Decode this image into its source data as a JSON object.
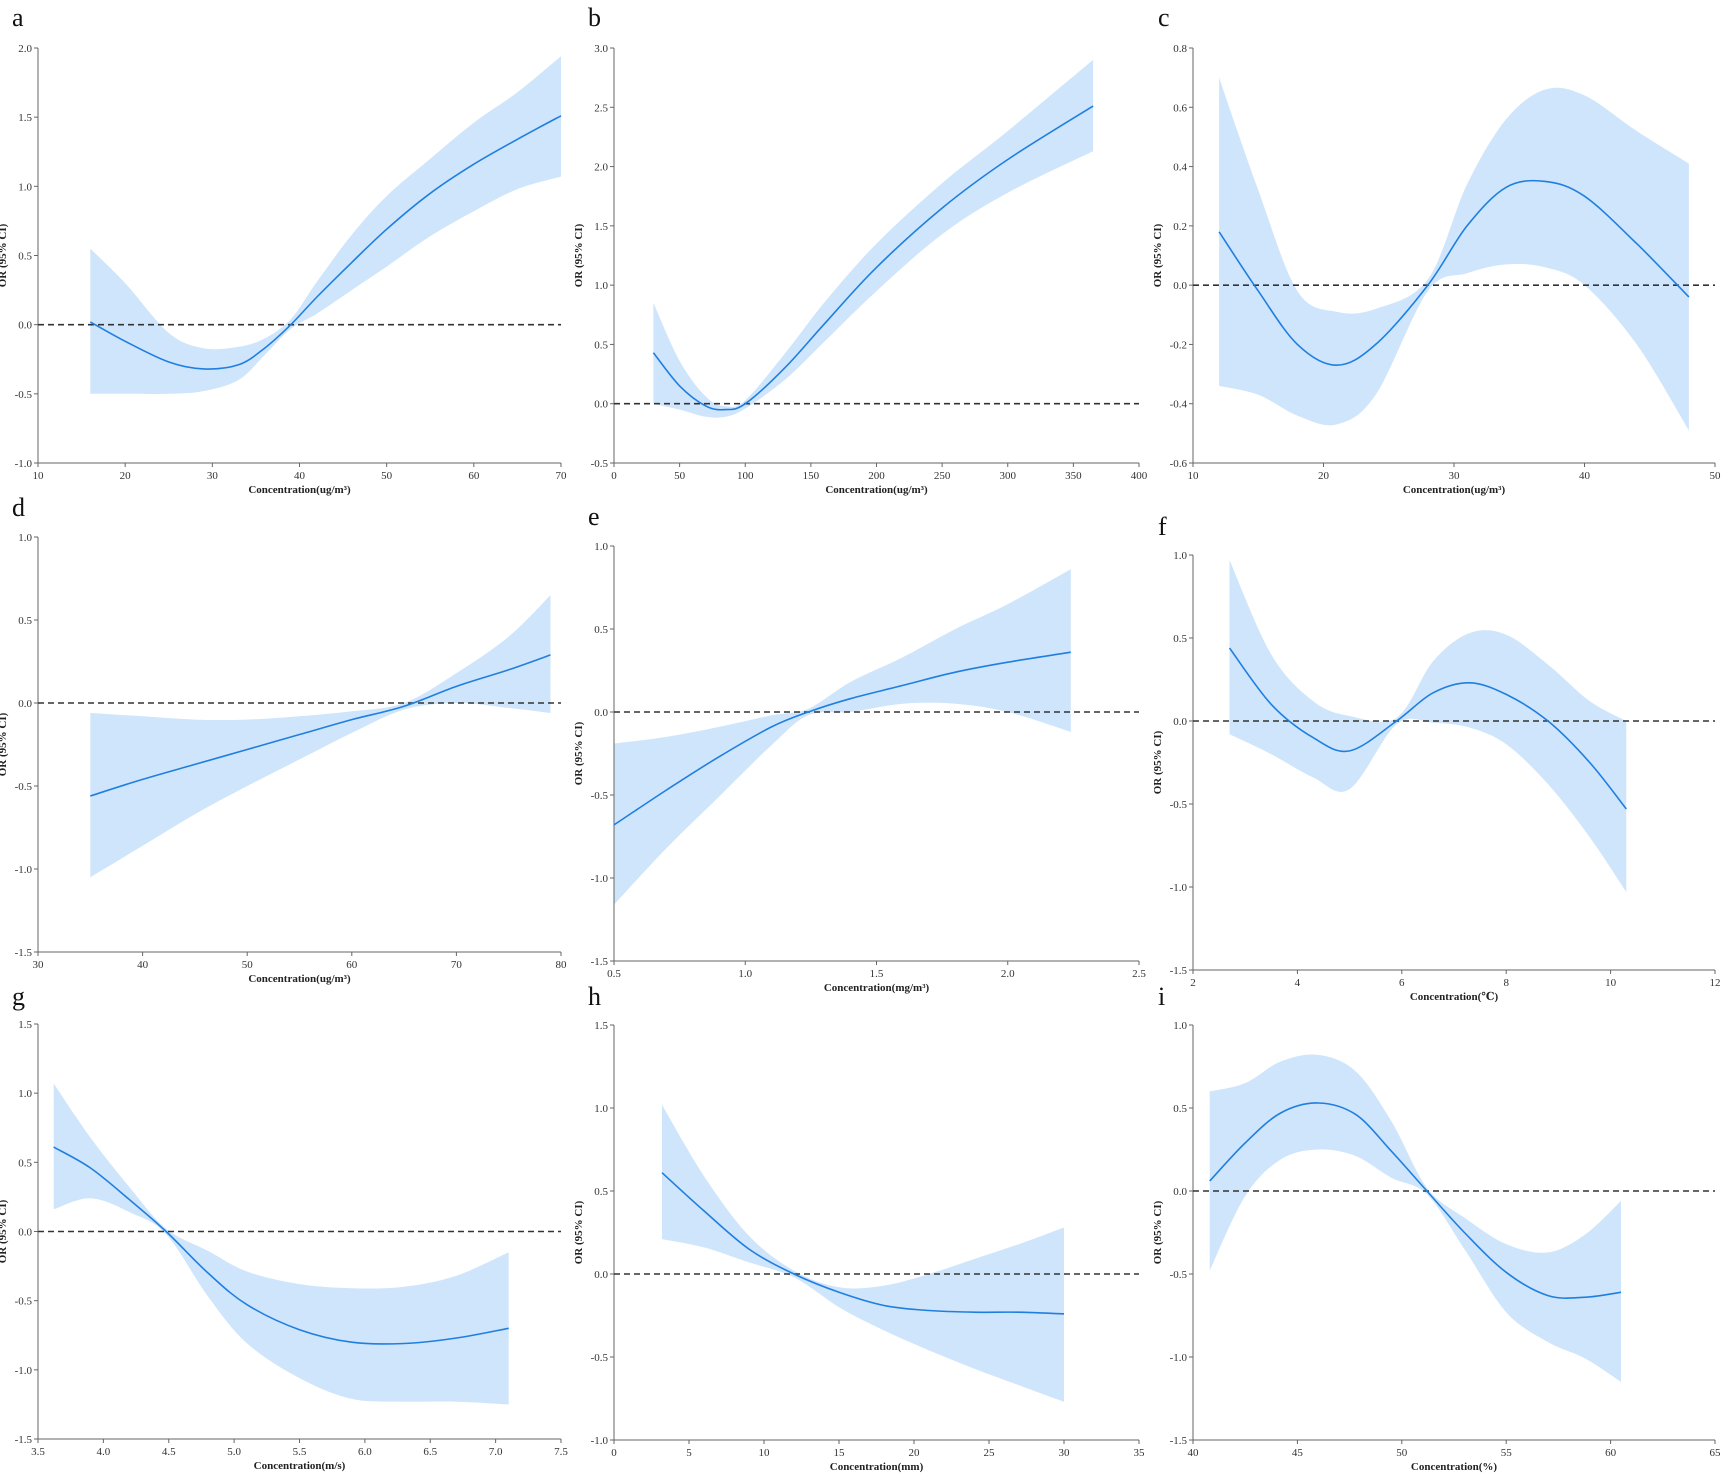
{
  "colors": {
    "line": "#1f7fe0",
    "band": "#cfe5fb",
    "refline": "#333333",
    "axis": "#666666",
    "background": "#ffffff"
  },
  "chart_data": [
    {
      "panel": "a",
      "type": "line",
      "xlabel": "Concentration(ug/m³)",
      "ylabel": "OR (95% CI)",
      "xlim": [
        10,
        70
      ],
      "ylim": [
        -1.0,
        2.0
      ],
      "xticks": [
        "10",
        "20",
        "30",
        "40",
        "50",
        "60",
        "70"
      ],
      "yticks": [
        "-1.0",
        "-0.5",
        "0.0",
        "0.5",
        "1.0",
        "1.5",
        "2.0"
      ],
      "reference_y": 0,
      "x": [
        16,
        20,
        25,
        29,
        33,
        36,
        39,
        42,
        46,
        50,
        55,
        60,
        65,
        70
      ],
      "y": [
        0.02,
        -0.12,
        -0.27,
        -0.32,
        -0.29,
        -0.17,
        0.0,
        0.2,
        0.45,
        0.69,
        0.95,
        1.16,
        1.34,
        1.51
      ],
      "lower": [
        -0.5,
        -0.5,
        -0.5,
        -0.48,
        -0.4,
        -0.22,
        -0.03,
        0.08,
        0.25,
        0.42,
        0.64,
        0.82,
        0.98,
        1.07
      ],
      "upper": [
        0.55,
        0.3,
        -0.06,
        -0.17,
        -0.16,
        -0.1,
        0.04,
        0.31,
        0.65,
        0.93,
        1.2,
        1.46,
        1.68,
        1.94
      ]
    },
    {
      "panel": "b",
      "type": "line",
      "xlabel": "Concentration(ug/m³)",
      "ylabel": "OR (95% CI)",
      "xlim": [
        0,
        400
      ],
      "ylim": [
        -0.5,
        3.0
      ],
      "xticks": [
        "0",
        "50",
        "100",
        "150",
        "200",
        "250",
        "300",
        "350",
        "400"
      ],
      "yticks": [
        "-0.5",
        "0.0",
        "0.5",
        "1.0",
        "1.5",
        "2.0",
        "2.5",
        "3.0"
      ],
      "reference_y": 0,
      "x": [
        30,
        50,
        70,
        85,
        100,
        130,
        160,
        200,
        250,
        300,
        365
      ],
      "y": [
        0.43,
        0.15,
        -0.02,
        -0.05,
        0.0,
        0.3,
        0.67,
        1.15,
        1.65,
        2.06,
        2.51
      ],
      "lower": [
        0.0,
        -0.05,
        -0.11,
        -0.11,
        -0.04,
        0.2,
        0.52,
        0.95,
        1.43,
        1.78,
        2.13
      ],
      "upper": [
        0.85,
        0.36,
        0.06,
        -0.02,
        0.03,
        0.42,
        0.85,
        1.35,
        1.86,
        2.3,
        2.9
      ]
    },
    {
      "panel": "c",
      "type": "line",
      "xlabel": "Concentration(ug/m³)",
      "ylabel": "OR (95% CI)",
      "xlim": [
        10,
        50
      ],
      "ylim": [
        -0.6,
        0.8
      ],
      "xticks": [
        "10",
        "20",
        "30",
        "40",
        "50"
      ],
      "yticks": [
        "-0.6",
        "-0.4",
        "-0.2",
        "0.0",
        "0.2",
        "0.4",
        "0.6",
        "0.8"
      ],
      "reference_y": 0,
      "x": [
        12,
        15,
        18,
        21,
        24,
        28,
        31,
        34,
        37,
        40,
        44,
        48
      ],
      "y": [
        0.18,
        -0.02,
        -0.2,
        -0.27,
        -0.2,
        0.0,
        0.2,
        0.33,
        0.35,
        0.3,
        0.14,
        -0.04
      ],
      "lower": [
        -0.34,
        -0.37,
        -0.44,
        -0.47,
        -0.37,
        -0.02,
        0.04,
        0.07,
        0.06,
        0.0,
        -0.2,
        -0.49
      ],
      "upper": [
        0.7,
        0.32,
        -0.02,
        -0.09,
        -0.08,
        0.02,
        0.34,
        0.56,
        0.66,
        0.64,
        0.52,
        0.41
      ]
    },
    {
      "panel": "d",
      "type": "line",
      "xlabel": "Concentration(ug/m³)",
      "ylabel": "OR (95% CI)",
      "xlim": [
        30,
        80
      ],
      "ylim": [
        -1.5,
        1.0
      ],
      "xticks": [
        "30",
        "40",
        "50",
        "60",
        "70",
        "80"
      ],
      "yticks": [
        "-1.5",
        "-1.0",
        "-0.5",
        "0.0",
        "0.5",
        "1.0"
      ],
      "reference_y": 0,
      "x": [
        35,
        40,
        45,
        50,
        55,
        60,
        65,
        70,
        75,
        79
      ],
      "y": [
        -0.56,
        -0.46,
        -0.37,
        -0.28,
        -0.19,
        -0.1,
        -0.02,
        0.1,
        0.2,
        0.29
      ],
      "lower": [
        -1.05,
        -0.86,
        -0.67,
        -0.5,
        -0.34,
        -0.18,
        -0.04,
        0.0,
        -0.03,
        -0.06
      ],
      "upper": [
        -0.06,
        -0.08,
        -0.1,
        -0.1,
        -0.08,
        -0.05,
        0.0,
        0.18,
        0.4,
        0.65
      ]
    },
    {
      "panel": "e",
      "type": "line",
      "xlabel": "Concentration(mg/m³)",
      "ylabel": "OR (95% CI)",
      "xlim": [
        0.5,
        2.5
      ],
      "ylim": [
        -1.5,
        1.0
      ],
      "xticks": [
        "0.5",
        "1.0",
        "1.5",
        "2.0",
        "2.5"
      ],
      "yticks": [
        "-1.5",
        "-1.0",
        "-0.5",
        "0.0",
        "0.5",
        "1.0"
      ],
      "reference_y": 0,
      "x": [
        0.5,
        0.7,
        0.9,
        1.1,
        1.24,
        1.4,
        1.6,
        1.8,
        2.0,
        2.24
      ],
      "y": [
        -0.68,
        -0.47,
        -0.27,
        -0.09,
        0.0,
        0.08,
        0.16,
        0.24,
        0.3,
        0.36
      ],
      "lower": [
        -1.16,
        -0.82,
        -0.51,
        -0.2,
        -0.02,
        0.0,
        0.05,
        0.05,
        0.0,
        -0.12
      ],
      "upper": [
        -0.19,
        -0.15,
        -0.09,
        -0.02,
        0.02,
        0.18,
        0.33,
        0.5,
        0.65,
        0.86
      ]
    },
    {
      "panel": "f",
      "type": "line",
      "xlabel": "Concentration(℃)",
      "ylabel": "OR (95% CI)",
      "xlim": [
        2,
        12
      ],
      "ylim": [
        -1.5,
        1.0
      ],
      "xticks": [
        "2",
        "4",
        "6",
        "8",
        "10",
        "12"
      ],
      "yticks": [
        "-1.5",
        "-1.0",
        "-0.5",
        "0.0",
        "0.5",
        "1.0"
      ],
      "reference_y": 0,
      "x": [
        2.7,
        3.5,
        4.3,
        5.0,
        5.9,
        6.6,
        7.3,
        8.0,
        8.8,
        9.6,
        10.3
      ],
      "y": [
        0.44,
        0.1,
        -0.1,
        -0.18,
        0.0,
        0.17,
        0.23,
        0.16,
        0.0,
        -0.25,
        -0.53
      ],
      "lower": [
        -0.08,
        -0.2,
        -0.34,
        -0.41,
        -0.02,
        -0.01,
        -0.04,
        -0.14,
        -0.38,
        -0.7,
        -1.03
      ],
      "upper": [
        0.97,
        0.4,
        0.12,
        0.03,
        0.02,
        0.36,
        0.53,
        0.52,
        0.34,
        0.12,
        0.0
      ]
    },
    {
      "panel": "g",
      "type": "line",
      "xlabel": "Concentration(m/s)",
      "ylabel": "OR (95% CI)",
      "xlim": [
        3.5,
        7.5
      ],
      "ylim": [
        -1.5,
        1.5
      ],
      "xticks": [
        "3.5",
        "4.0",
        "4.5",
        "5.0",
        "5.5",
        "6.0",
        "6.5",
        "7.0",
        "7.5"
      ],
      "yticks": [
        "-1.5",
        "-1.0",
        "-0.5",
        "0.0",
        "0.5",
        "1.0",
        "1.5"
      ],
      "reference_y": 0,
      "x": [
        3.62,
        3.9,
        4.2,
        4.48,
        4.8,
        5.1,
        5.5,
        5.9,
        6.3,
        6.7,
        7.1
      ],
      "y": [
        0.61,
        0.46,
        0.23,
        0.0,
        -0.3,
        -0.53,
        -0.71,
        -0.8,
        -0.81,
        -0.77,
        -0.7
      ],
      "lower": [
        0.16,
        0.24,
        0.14,
        -0.02,
        -0.47,
        -0.81,
        -1.06,
        -1.21,
        -1.23,
        -1.23,
        -1.25
      ],
      "upper": [
        1.07,
        0.68,
        0.32,
        0.02,
        -0.14,
        -0.29,
        -0.38,
        -0.41,
        -0.4,
        -0.32,
        -0.15
      ]
    },
    {
      "panel": "h",
      "type": "line",
      "xlabel": "Concentration(mm)",
      "ylabel": "OR (95% CI)",
      "xlim": [
        0,
        35
      ],
      "ylim": [
        -1.0,
        1.5
      ],
      "xticks": [
        "0",
        "5",
        "10",
        "15",
        "20",
        "25",
        "30",
        "35"
      ],
      "yticks": [
        "-1.0",
        "-0.5",
        "0.0",
        "0.5",
        "1.0",
        "1.5"
      ],
      "reference_y": 0,
      "x": [
        3.2,
        6,
        9,
        12,
        15,
        18,
        21,
        24,
        27,
        30
      ],
      "y": [
        0.61,
        0.38,
        0.15,
        0.0,
        -0.11,
        -0.19,
        -0.22,
        -0.23,
        -0.23,
        -0.24
      ],
      "lower": [
        0.21,
        0.16,
        0.07,
        -0.02,
        -0.2,
        -0.34,
        -0.46,
        -0.57,
        -0.67,
        -0.77
      ],
      "upper": [
        1.02,
        0.59,
        0.23,
        0.02,
        -0.08,
        -0.07,
        0.0,
        0.09,
        0.18,
        0.28
      ]
    },
    {
      "panel": "i",
      "type": "line",
      "xlabel": "Concentration(%)",
      "ylabel": "OR (95% CI)",
      "xlim": [
        40,
        65
      ],
      "ylim": [
        -1.5,
        1.0
      ],
      "xticks": [
        "40",
        "45",
        "50",
        "55",
        "60",
        "65"
      ],
      "yticks": [
        "-1.5",
        "-1.0",
        "-0.5",
        "0.0",
        "0.5",
        "1.0"
      ],
      "reference_y": 0,
      "x": [
        40.8,
        42.5,
        44.2,
        46,
        47.8,
        49.5,
        51.2,
        53,
        55,
        57,
        58.8,
        60.5
      ],
      "y": [
        0.06,
        0.29,
        0.47,
        0.53,
        0.46,
        0.24,
        0.0,
        -0.25,
        -0.49,
        -0.63,
        -0.64,
        -0.61
      ],
      "lower": [
        -0.48,
        -0.03,
        0.19,
        0.25,
        0.21,
        0.08,
        -0.02,
        -0.35,
        -0.73,
        -0.91,
        -1.01,
        -1.15
      ],
      "upper": [
        0.6,
        0.65,
        0.78,
        0.82,
        0.72,
        0.42,
        0.02,
        -0.16,
        -0.32,
        -0.37,
        -0.26,
        -0.06
      ]
    }
  ]
}
